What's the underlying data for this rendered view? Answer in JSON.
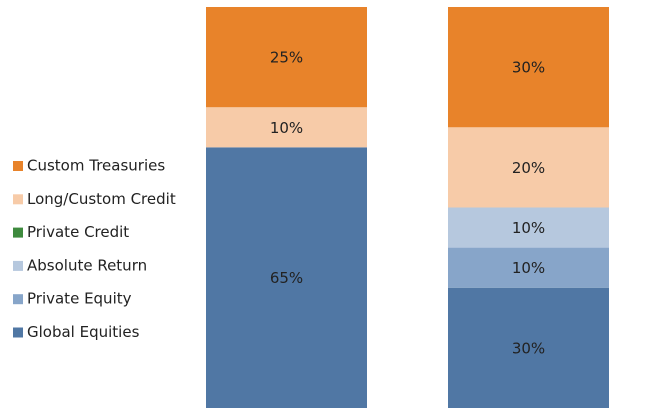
{
  "chart_data": {
    "type": "stacked_bar",
    "categories": [
      null,
      null
    ],
    "ylim": [
      0,
      100
    ],
    "series": [
      {
        "name": "Custom Treasuries",
        "color": "#e8832a",
        "values": [
          25,
          30
        ],
        "value_labels": [
          "25%",
          "30%"
        ]
      },
      {
        "name": "Long/Custom Credit",
        "color": "#f7cba8",
        "values": [
          10,
          20
        ],
        "value_labels": [
          "10%",
          "20%"
        ]
      },
      {
        "name": "Private Credit",
        "color": "#3e8a3e",
        "values": [
          0,
          0
        ],
        "value_labels": [
          null,
          null
        ]
      },
      {
        "name": "Absolute Return",
        "color": "#b6c8de",
        "values": [
          0,
          10
        ],
        "value_labels": [
          null,
          "10%"
        ]
      },
      {
        "name": "Private Equity",
        "color": "#87a5c9",
        "values": [
          0,
          10
        ],
        "value_labels": [
          null,
          "10%"
        ]
      },
      {
        "name": "Global Equities",
        "color": "#5077a4",
        "values": [
          65,
          30
        ],
        "value_labels": [
          "65%",
          "30%"
        ]
      }
    ]
  }
}
